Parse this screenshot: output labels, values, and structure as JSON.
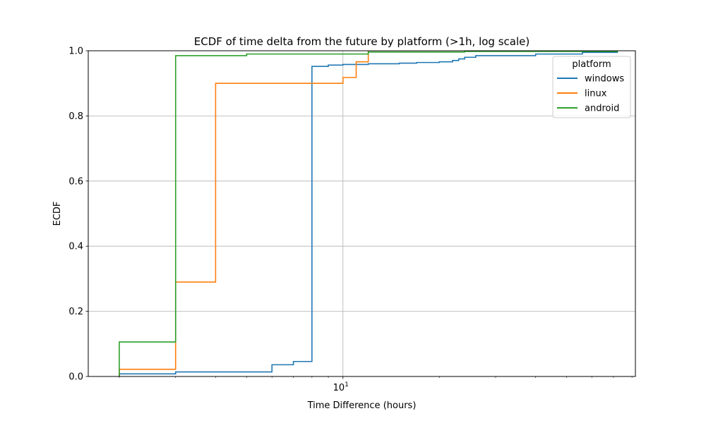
{
  "chart_data": {
    "type": "line",
    "title": "ECDF of time delta from the future by platform (>1h, log scale)",
    "xlabel": "Time Difference (hours)",
    "ylabel": "ECDF",
    "x_scale": "log",
    "xlim": [
      1.6,
      82
    ],
    "ylim": [
      0,
      1
    ],
    "x_ticks": [
      {
        "value": 10,
        "label_base": "10",
        "label_exp": "1"
      }
    ],
    "y_ticks": [
      {
        "value": 0.0,
        "label": "0.0"
      },
      {
        "value": 0.2,
        "label": "0.2"
      },
      {
        "value": 0.4,
        "label": "0.4"
      },
      {
        "value": 0.6,
        "label": "0.6"
      },
      {
        "value": 0.8,
        "label": "0.8"
      },
      {
        "value": 1.0,
        "label": "1.0"
      }
    ],
    "grid": true,
    "legend": {
      "title": "platform",
      "position": "top-right"
    },
    "series": [
      {
        "name": "windows",
        "color": "#1f77b4",
        "steps": [
          [
            2,
            0.0
          ],
          [
            2,
            0.008
          ],
          [
            3,
            0.014
          ],
          [
            6,
            0.036
          ],
          [
            7,
            0.046
          ],
          [
            8,
            0.952
          ],
          [
            9,
            0.956
          ],
          [
            10,
            0.958
          ],
          [
            12,
            0.96
          ],
          [
            15,
            0.962
          ],
          [
            17,
            0.964
          ],
          [
            20,
            0.966
          ],
          [
            22,
            0.97
          ],
          [
            23,
            0.975
          ],
          [
            24,
            0.98
          ],
          [
            26,
            0.985
          ],
          [
            40,
            0.99
          ],
          [
            56,
            0.995
          ],
          [
            72,
            1.0
          ],
          [
            72,
            1.0
          ]
        ]
      },
      {
        "name": "linux",
        "color": "#ff7f0e",
        "steps": [
          [
            2,
            0.0
          ],
          [
            2,
            0.022
          ],
          [
            3,
            0.29
          ],
          [
            4,
            0.9
          ],
          [
            10,
            0.918
          ],
          [
            11,
            0.966
          ],
          [
            12,
            1.0
          ],
          [
            12,
            1.0
          ]
        ]
      },
      {
        "name": "android",
        "color": "#2ca02c",
        "steps": [
          [
            2,
            0.0
          ],
          [
            2,
            0.106
          ],
          [
            3,
            0.985
          ],
          [
            5,
            0.99
          ],
          [
            12,
            0.996
          ],
          [
            24,
            0.998
          ],
          [
            72,
            1.0
          ],
          [
            72,
            1.0
          ]
        ]
      }
    ]
  }
}
